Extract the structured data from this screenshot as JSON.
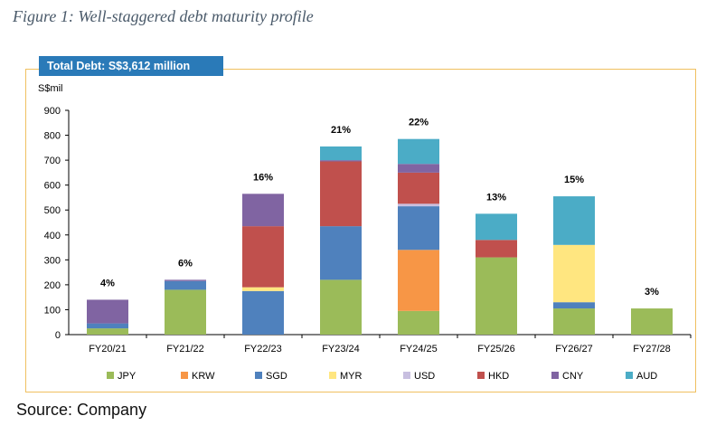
{
  "figure_title": "Figure 1: Well-staggered debt maturity profile",
  "total_label": "Total Debt: S$3,612 million",
  "source": "Source: Company",
  "chart_data": {
    "type": "bar",
    "stacked": true,
    "ylabel": "S$mil",
    "ylim": [
      0,
      900
    ],
    "yticks": [
      0,
      100,
      200,
      300,
      400,
      500,
      600,
      700,
      800,
      900
    ],
    "grid": false,
    "legend_position": "bottom",
    "categories": [
      "FY20/21",
      "FY21/22",
      "FY22/23",
      "FY23/24",
      "FY24/25",
      "FY25/26",
      "FY26/27",
      "FY27/28"
    ],
    "percent_labels": [
      "4%",
      "6%",
      "16%",
      "21%",
      "22%",
      "13%",
      "15%",
      "3%"
    ],
    "series": [
      {
        "name": "JPY",
        "color": "#9bbb59",
        "values": [
          25,
          180,
          0,
          220,
          95,
          310,
          105,
          105
        ]
      },
      {
        "name": "KRW",
        "color": "#f79646",
        "values": [
          0,
          0,
          0,
          0,
          245,
          0,
          0,
          0
        ]
      },
      {
        "name": "SGD",
        "color": "#4f81bd",
        "values": [
          20,
          35,
          175,
          215,
          175,
          0,
          25,
          0
        ]
      },
      {
        "name": "MYR",
        "color": "#ffe680",
        "values": [
          0,
          0,
          15,
          0,
          0,
          0,
          230,
          0
        ]
      },
      {
        "name": "USD",
        "color": "#c8bfe0",
        "values": [
          0,
          0,
          0,
          0,
          10,
          0,
          0,
          0
        ]
      },
      {
        "name": "HKD",
        "color": "#c0504d",
        "values": [
          0,
          0,
          245,
          260,
          125,
          70,
          0,
          0
        ]
      },
      {
        "name": "CNY",
        "color": "#8064a2",
        "values": [
          95,
          5,
          130,
          5,
          35,
          0,
          0,
          0
        ]
      },
      {
        "name": "AUD",
        "color": "#4bacc6",
        "values": [
          0,
          0,
          0,
          55,
          100,
          105,
          195,
          0
        ]
      }
    ]
  }
}
